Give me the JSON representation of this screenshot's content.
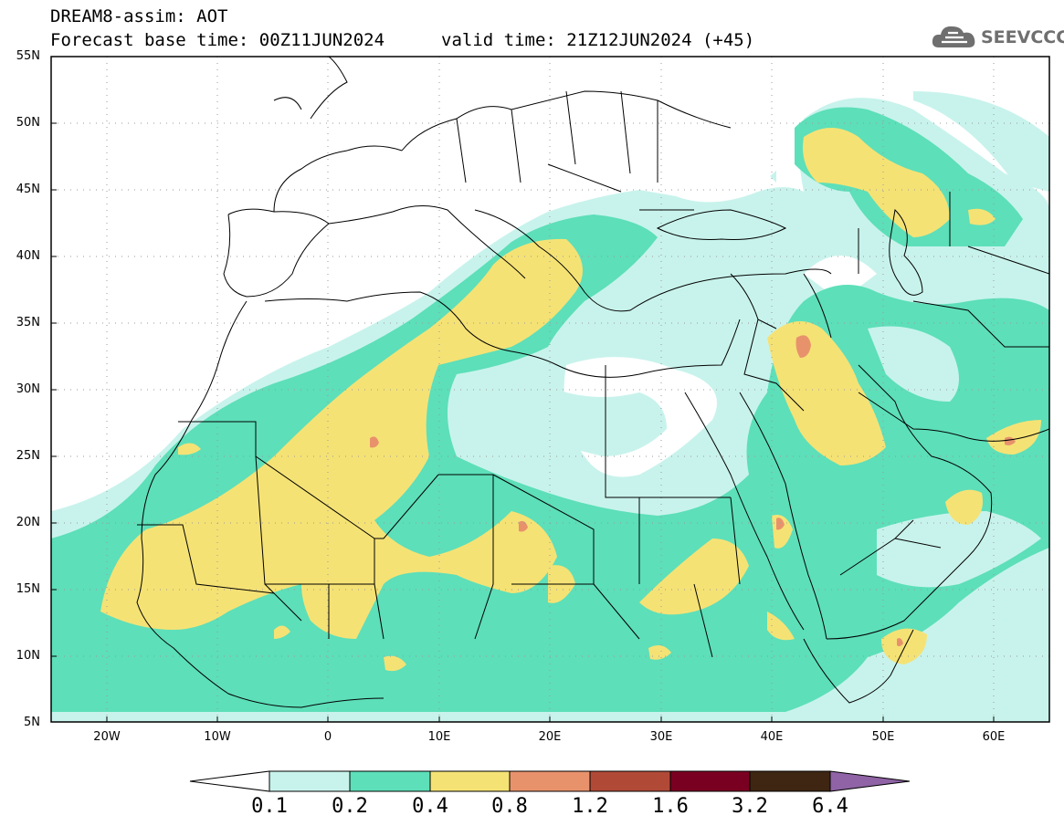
{
  "header": {
    "title_line1": "DREAM8-assim: AOT",
    "title_line2": "Forecast base time: 00Z11JUN2024",
    "valid_time": "valid time: 21Z12JUN2024 (+45)",
    "logo_text": "SEEVCCC"
  },
  "map": {
    "lon_range": [
      -25,
      65
    ],
    "lat_range": [
      5,
      55
    ],
    "lat_labels": [
      "55N",
      "50N",
      "45N",
      "40N",
      "35N",
      "30N",
      "25N",
      "20N",
      "15N",
      "10N",
      "5N"
    ],
    "lon_labels": [
      "20W",
      "10W",
      "0",
      "10E",
      "20E",
      "30E",
      "40E",
      "50E",
      "60E"
    ],
    "gridlines": "dotted"
  },
  "colorbar": {
    "labels": [
      "0.1",
      "0.2",
      "0.4",
      "0.8",
      "1.2",
      "1.6",
      "3.2",
      "6.4"
    ],
    "colors": {
      "below": "#ffffff",
      "c0_1": "#c8f3ec",
      "c0_2": "#5ddfb9",
      "c0_4": "#f5e275",
      "c0_8": "#e8926c",
      "c1_2": "#b04a37",
      "c1_6": "#7a0022",
      "c3_2": "#3e2612",
      "above": "#8f63a5"
    }
  }
}
